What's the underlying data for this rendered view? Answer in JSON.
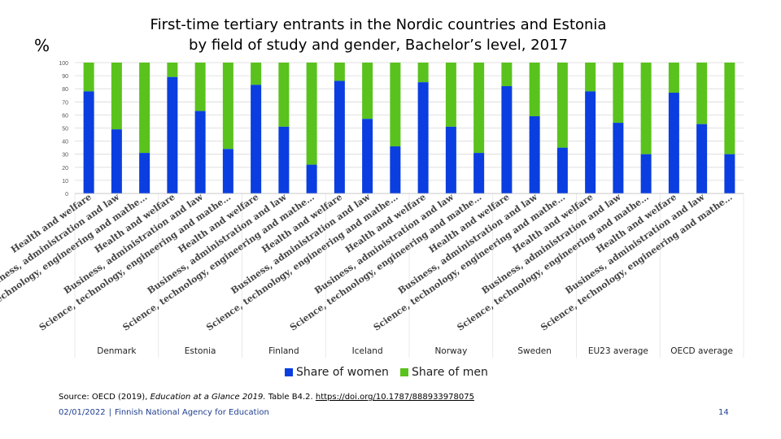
{
  "title_line1": "First-time tertiary entrants in the Nordic countries and Estonia",
  "title_line2": "by field of study and gender, Bachelor’s level, 2017",
  "unit": "%",
  "legend": {
    "women": "Share of women",
    "men": "Share of men"
  },
  "colors": {
    "women": "#0a3ee0",
    "men": "#5ac21c",
    "grid": "#d9d9d9",
    "axis_text": "#555555"
  },
  "source": {
    "prefix": "Source: OECD (2019), ",
    "italic": "Education at a Glance 2019.",
    "suffix": " Table B4.2. ",
    "link": "https://doi.org/10.1787/888933978075"
  },
  "footer": {
    "date": "02/01/2022",
    "org": "Finnish National Agency for Education",
    "page": "14"
  },
  "chart_data": {
    "type": "bar",
    "stacked": true,
    "ylim": [
      0,
      100
    ],
    "yticks": [
      0,
      10,
      20,
      30,
      40,
      50,
      60,
      70,
      80,
      90,
      100
    ],
    "field_labels": [
      "Health and welfare",
      "Business, administration and law",
      "Science, technology, engineering and mathe…"
    ],
    "groups": [
      {
        "name": "Denmark",
        "women": [
          78,
          49,
          31
        ]
      },
      {
        "name": "Estonia",
        "women": [
          89,
          63,
          34
        ]
      },
      {
        "name": "Finland",
        "women": [
          83,
          51,
          22
        ]
      },
      {
        "name": "Iceland",
        "women": [
          86,
          57,
          36
        ]
      },
      {
        "name": "Norway",
        "women": [
          85,
          51,
          31
        ]
      },
      {
        "name": "Sweden",
        "women": [
          82,
          59,
          35
        ]
      },
      {
        "name": "EU23 average",
        "women": [
          78,
          54,
          30
        ]
      },
      {
        "name": "OECD average",
        "women": [
          77,
          53,
          30
        ]
      }
    ],
    "series": [
      {
        "name": "Share of women",
        "key": "women"
      },
      {
        "name": "Share of men",
        "key": "men"
      }
    ]
  }
}
